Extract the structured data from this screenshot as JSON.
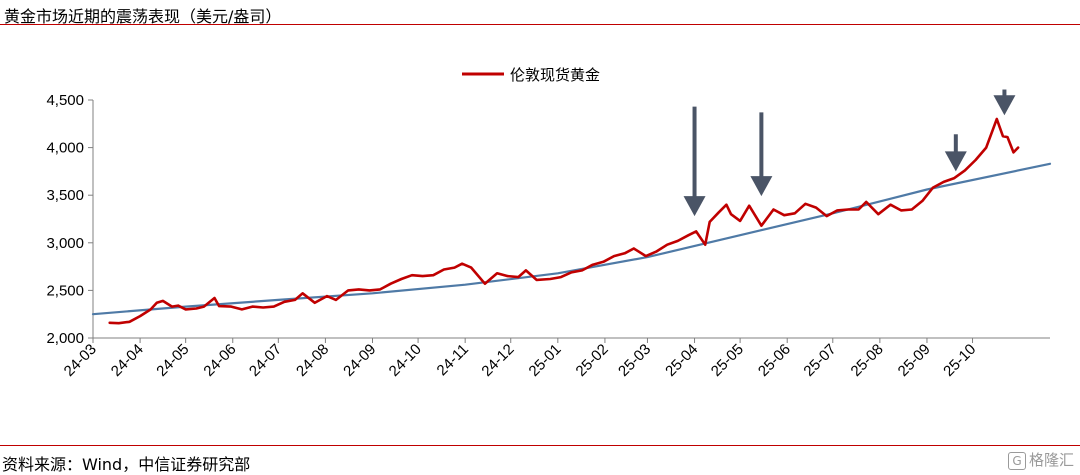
{
  "header": {
    "title": "黄金市场近期的震荡表现（美元/盎司）"
  },
  "footer": {
    "source": "资料来源：Wind，中信证券研究部",
    "watermark": "格隆汇"
  },
  "colors": {
    "gold_series": "#c00000",
    "trend": "#4f7aa6",
    "arrow": "#4a5466",
    "rule": "#c00000"
  },
  "chart_data": {
    "type": "line",
    "title": "",
    "xlabel": "",
    "ylabel": "",
    "ylim": [
      2000,
      4500
    ],
    "yticks": [
      2000,
      2500,
      3000,
      3500,
      4000,
      4500
    ],
    "ytick_labels": [
      "2,000",
      "2,500",
      "3,000",
      "3,500",
      "4,000",
      "4,500"
    ],
    "xlim": [
      "2024-03-01",
      "2025-11-21"
    ],
    "xticks": [
      "2024-03-01",
      "2024-04-01",
      "2024-05-01",
      "2024-06-01",
      "2024-07-01",
      "2024-08-01",
      "2024-09-01",
      "2024-10-01",
      "2024-11-01",
      "2024-12-01",
      "2025-01-01",
      "2025-02-01",
      "2025-03-01",
      "2025-04-01",
      "2025-05-01",
      "2025-06-01",
      "2025-07-01",
      "2025-08-01",
      "2025-09-01",
      "2025-10-01"
    ],
    "xtick_labels": [
      "24-03",
      "24-04",
      "24-05",
      "24-06",
      "24-07",
      "24-08",
      "24-09",
      "24-10",
      "24-11",
      "24-12",
      "25-01",
      "25-02",
      "25-03",
      "25-04",
      "25-05",
      "25-06",
      "25-07",
      "25-08",
      "25-09",
      "25-10"
    ],
    "legend": {
      "position": "top-center"
    },
    "grid": false,
    "series": [
      {
        "name": "伦敦现货黄金",
        "color": "#c00000",
        "points": [
          [
            "2024-03-12",
            2160
          ],
          [
            "2024-03-18",
            2155
          ],
          [
            "2024-03-25",
            2170
          ],
          [
            "2024-04-01",
            2230
          ],
          [
            "2024-04-08",
            2300
          ],
          [
            "2024-04-12",
            2370
          ],
          [
            "2024-04-16",
            2390
          ],
          [
            "2024-04-22",
            2330
          ],
          [
            "2024-04-26",
            2340
          ],
          [
            "2024-05-01",
            2300
          ],
          [
            "2024-05-08",
            2310
          ],
          [
            "2024-05-13",
            2330
          ],
          [
            "2024-05-20",
            2420
          ],
          [
            "2024-05-23",
            2335
          ],
          [
            "2024-05-31",
            2330
          ],
          [
            "2024-06-07",
            2300
          ],
          [
            "2024-06-14",
            2330
          ],
          [
            "2024-06-21",
            2320
          ],
          [
            "2024-06-28",
            2330
          ],
          [
            "2024-07-05",
            2380
          ],
          [
            "2024-07-12",
            2400
          ],
          [
            "2024-07-17",
            2470
          ],
          [
            "2024-07-25",
            2370
          ],
          [
            "2024-08-02",
            2440
          ],
          [
            "2024-08-08",
            2400
          ],
          [
            "2024-08-16",
            2500
          ],
          [
            "2024-08-23",
            2510
          ],
          [
            "2024-08-30",
            2500
          ],
          [
            "2024-09-06",
            2510
          ],
          [
            "2024-09-13",
            2570
          ],
          [
            "2024-09-20",
            2620
          ],
          [
            "2024-09-27",
            2660
          ],
          [
            "2024-10-04",
            2650
          ],
          [
            "2024-10-11",
            2660
          ],
          [
            "2024-10-18",
            2720
          ],
          [
            "2024-10-25",
            2740
          ],
          [
            "2024-10-30",
            2780
          ],
          [
            "2024-11-05",
            2740
          ],
          [
            "2024-11-14",
            2570
          ],
          [
            "2024-11-22",
            2680
          ],
          [
            "2024-11-29",
            2650
          ],
          [
            "2024-12-06",
            2640
          ],
          [
            "2024-12-11",
            2710
          ],
          [
            "2024-12-18",
            2610
          ],
          [
            "2024-12-27",
            2620
          ],
          [
            "2025-01-03",
            2640
          ],
          [
            "2025-01-10",
            2690
          ],
          [
            "2025-01-17",
            2710
          ],
          [
            "2025-01-24",
            2770
          ],
          [
            "2025-01-31",
            2800
          ],
          [
            "2025-02-07",
            2860
          ],
          [
            "2025-02-14",
            2890
          ],
          [
            "2025-02-20",
            2940
          ],
          [
            "2025-02-28",
            2860
          ],
          [
            "2025-03-07",
            2910
          ],
          [
            "2025-03-14",
            2980
          ],
          [
            "2025-03-21",
            3020
          ],
          [
            "2025-03-28",
            3080
          ],
          [
            "2025-04-02",
            3120
          ],
          [
            "2025-04-08",
            2980
          ],
          [
            "2025-04-11",
            3220
          ],
          [
            "2025-04-17",
            3320
          ],
          [
            "2025-04-22",
            3400
          ],
          [
            "2025-04-25",
            3300
          ],
          [
            "2025-05-01",
            3230
          ],
          [
            "2025-05-07",
            3390
          ],
          [
            "2025-05-15",
            3180
          ],
          [
            "2025-05-23",
            3350
          ],
          [
            "2025-05-30",
            3290
          ],
          [
            "2025-06-06",
            3310
          ],
          [
            "2025-06-13",
            3410
          ],
          [
            "2025-06-20",
            3370
          ],
          [
            "2025-06-27",
            3280
          ],
          [
            "2025-07-04",
            3340
          ],
          [
            "2025-07-11",
            3350
          ],
          [
            "2025-07-18",
            3350
          ],
          [
            "2025-07-23",
            3430
          ],
          [
            "2025-07-31",
            3300
          ],
          [
            "2025-08-08",
            3400
          ],
          [
            "2025-08-15",
            3340
          ],
          [
            "2025-08-22",
            3350
          ],
          [
            "2025-08-29",
            3440
          ],
          [
            "2025-09-05",
            3580
          ],
          [
            "2025-09-12",
            3640
          ],
          [
            "2025-09-19",
            3680
          ],
          [
            "2025-09-26",
            3760
          ],
          [
            "2025-10-03",
            3870
          ],
          [
            "2025-10-10",
            4000
          ],
          [
            "2025-10-17",
            4300
          ],
          [
            "2025-10-21",
            4120
          ],
          [
            "2025-10-24",
            4110
          ],
          [
            "2025-10-28",
            3950
          ],
          [
            "2025-10-31",
            4000
          ]
        ]
      },
      {
        "name": "",
        "color": "#4f7aa6",
        "points": [
          [
            "2024-03-01",
            2250
          ],
          [
            "2024-05-01",
            2330
          ],
          [
            "2024-07-01",
            2400
          ],
          [
            "2024-09-01",
            2470
          ],
          [
            "2024-11-01",
            2560
          ],
          [
            "2025-01-01",
            2680
          ],
          [
            "2025-03-01",
            2850
          ],
          [
            "2025-05-01",
            3080
          ],
          [
            "2025-07-01",
            3310
          ],
          [
            "2025-09-01",
            3560
          ],
          [
            "2025-11-21",
            3830
          ]
        ]
      }
    ],
    "arrows": [
      {
        "x": "2025-04-01",
        "y_tail": 4430,
        "y_head": 3280
      },
      {
        "x": "2025-05-15",
        "y_tail": 4370,
        "y_head": 3490
      },
      {
        "x": "2025-09-20",
        "y_tail": 4140,
        "y_head": 3750
      },
      {
        "x": "2025-10-22",
        "y_tail": 4610,
        "y_head": 4340
      }
    ]
  }
}
